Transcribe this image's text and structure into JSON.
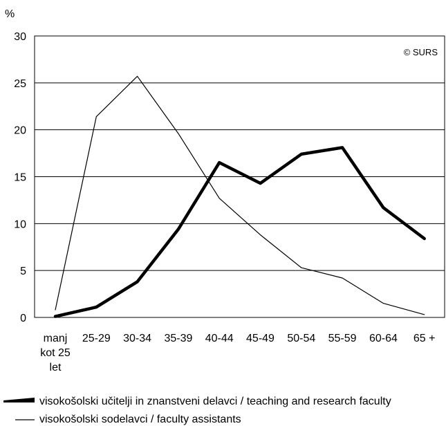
{
  "chart_data": {
    "type": "line",
    "title": "",
    "xlabel": "",
    "ylabel": "%",
    "watermark": "© SURS",
    "ylim": [
      0,
      30
    ],
    "yticks": [
      0,
      5,
      10,
      15,
      20,
      25,
      30
    ],
    "grid": true,
    "categories": [
      [
        "manj",
        "kot 25",
        "let"
      ],
      [
        "25-29"
      ],
      [
        "30-34"
      ],
      [
        "35-39"
      ],
      [
        "40-44"
      ],
      [
        "45-49"
      ],
      [
        "50-54"
      ],
      [
        "55-59"
      ],
      [
        "60-64"
      ],
      [
        "65 +"
      ]
    ],
    "series": [
      {
        "name": "visokošolski učitelji in znanstveni delavci / teaching and research faculty",
        "values": [
          0.1,
          1.1,
          3.8,
          9.4,
          16.5,
          14.3,
          17.4,
          18.1,
          11.7,
          8.4
        ],
        "style": "thick",
        "color": "#000000"
      },
      {
        "name": "visokošolski sodelavci / faculty assistants",
        "values": [
          0.8,
          21.4,
          25.7,
          19.6,
          12.7,
          8.8,
          5.3,
          4.2,
          1.5,
          0.3
        ],
        "style": "thin",
        "color": "#000000"
      }
    ],
    "legend_position": "bottom"
  }
}
